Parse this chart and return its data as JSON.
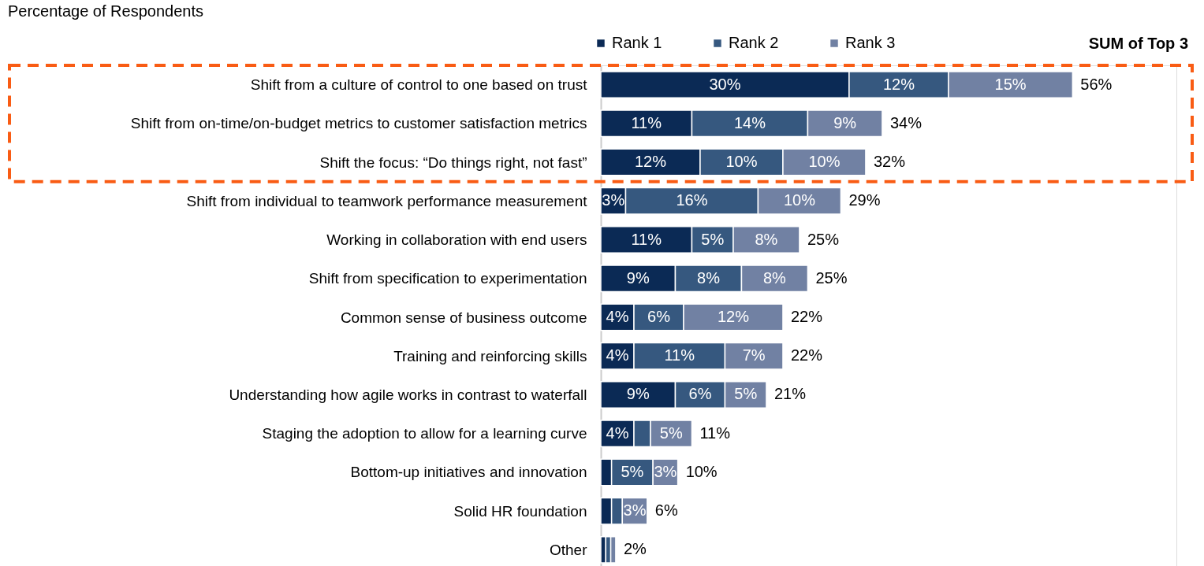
{
  "chart_data": {
    "type": "bar",
    "orientation": "horizontal",
    "stacked": true,
    "title": "Percentage of Respondents",
    "legend": "top",
    "annotations": [
      "SUM of Top 3"
    ],
    "categories": [
      "Shift from a culture of control to one based on trust",
      "Shift from on-time/on-budget metrics to customer satisfaction metrics",
      "Shift the focus: “Do things right, not fast”",
      "Shift from individual  to teamwork performance measurement",
      "Working in collaboration with end users",
      "Shift from specification to experimentation",
      "Common sense of business outcome",
      "Training and reinforcing skills",
      "Understanding how agile works in contrast to waterfall",
      "Staging the adoption to allow for a learning curve",
      "Bottom-up initiatives and innovation",
      "Solid HR foundation",
      "Other"
    ],
    "series": [
      {
        "name": "Rank 1",
        "color": "#0b2a55",
        "values": [
          30,
          11,
          12,
          3,
          11,
          9,
          4,
          4,
          9,
          4,
          1.3,
          1.3,
          0.6
        ],
        "value_labels": [
          "30%",
          "11%",
          "12%",
          "3%",
          "11%",
          "9%",
          "4%",
          "4%",
          "9%",
          "4%",
          null,
          null,
          null
        ]
      },
      {
        "name": "Rank 2",
        "color": "#36587f",
        "values": [
          12,
          14,
          10,
          16,
          5,
          8,
          6,
          11,
          6,
          2,
          5,
          1.3,
          0.6
        ],
        "value_labels": [
          "12%",
          "14%",
          "10%",
          "16%",
          "5%",
          "8%",
          "6%",
          "11%",
          "6%",
          null,
          "5%",
          null,
          null
        ]
      },
      {
        "name": "Rank 3",
        "color": "#7181a3",
        "values": [
          15,
          9,
          10,
          10,
          8,
          8,
          12,
          7,
          5,
          5,
          3,
          3,
          0.6
        ],
        "value_labels": [
          "15%",
          "9%",
          "10%",
          "10%",
          "8%",
          "8%",
          "12%",
          "7%",
          "5%",
          "5%",
          "3%",
          "3%",
          null
        ]
      }
    ],
    "totals": [
      "56%",
      "34%",
      "32%",
      "29%",
      "25%",
      "25%",
      "22%",
      "22%",
      "21%",
      "11%",
      "10%",
      "6%",
      "2%"
    ]
  }
}
